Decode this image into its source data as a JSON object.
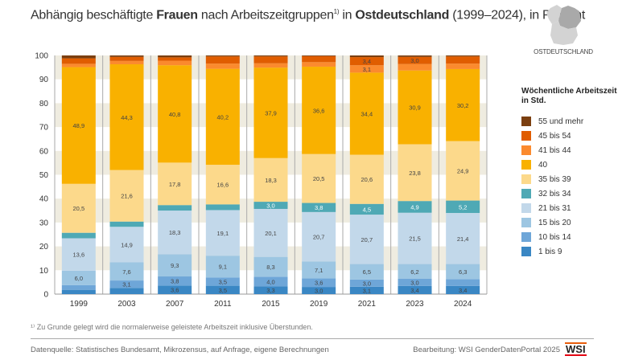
{
  "title": {
    "pre": "Abhängig beschäftigte ",
    "bold1": "Frauen",
    "mid": " nach Arbeitszeitgruppen",
    "sup": "1)",
    "mid2": " in ",
    "bold2": "Ostdeutschland",
    "post": " (1999–2024), in Prozent"
  },
  "map": {
    "label": "OSTDEUTSCHLAND",
    "icon": "germany-map-icon"
  },
  "footnote": "¹⁾ Zu Grunde gelegt wird die normalerweise geleistete Arbeitszeit inklusive Überstunden.",
  "source": "Datenquelle: Statistisches Bundesamt, Mikrozensus, auf Anfrage, eigene Berechnungen",
  "credit": "Bearbeitung: WSI GenderDatenPortal 2025",
  "logo": "WSI",
  "chart_data": {
    "type": "bar",
    "stacked": true,
    "categories": [
      "1999",
      "2003",
      "2007",
      "2011",
      "2015",
      "2019",
      "2021",
      "2023",
      "2024"
    ],
    "ylim": [
      0,
      100
    ],
    "yticks": [
      "0",
      "10",
      "20",
      "30",
      "40",
      "50",
      "60",
      "70",
      "80",
      "90",
      "100"
    ],
    "legend_title": "Wöchentliche Arbeitszeit in Std.",
    "legend_placement": "right",
    "series": [
      {
        "name": "1 bis 9",
        "color": "#3a87c4",
        "values": [
          1.8,
          2.6,
          3.6,
          3.5,
          3.3,
          3.0,
          3.1,
          3.4,
          3.4
        ],
        "labels": [
          null,
          null,
          "3,6",
          "3,5",
          "3,3",
          "3,0",
          "3,1",
          "3,4",
          "3,4"
        ]
      },
      {
        "name": "10 bis 14",
        "color": "#6ea6d8",
        "values": [
          2.0,
          3.1,
          3.8,
          3.5,
          4.0,
          3.6,
          3.0,
          3.0,
          2.9
        ],
        "labels": [
          null,
          "3,1",
          "3,8",
          "3,5",
          "4,0",
          "3,6",
          "3,0",
          "3,0",
          null
        ]
      },
      {
        "name": "15 bis 20",
        "color": "#9dc6e2",
        "values": [
          6.0,
          7.6,
          9.3,
          9.1,
          8.3,
          7.1,
          6.5,
          6.2,
          6.3
        ],
        "labels": [
          "6,0",
          "7,6",
          "9,3",
          "9,1",
          "8,3",
          "7,1",
          "6,5",
          "6,2",
          "6,3"
        ]
      },
      {
        "name": "21 bis 31",
        "color": "#c2d8ea",
        "values": [
          13.6,
          14.9,
          18.3,
          19.1,
          20.1,
          20.7,
          20.7,
          21.5,
          21.4
        ],
        "labels": [
          "13,6",
          "14,9",
          "18,3",
          "19,1",
          "20,1",
          "20,7",
          "20,7",
          "21,5",
          "21,4"
        ]
      },
      {
        "name": "32 bis 34",
        "color": "#4fa9b5",
        "values": [
          2.3,
          2.2,
          2.3,
          2.4,
          3.0,
          3.8,
          4.5,
          4.9,
          5.2
        ],
        "labels": [
          null,
          null,
          null,
          null,
          "3,0",
          "3,8",
          "4,5",
          "4,9",
          "5,2"
        ]
      },
      {
        "name": "35 bis 39",
        "color": "#fcd98b",
        "values": [
          20.5,
          21.6,
          17.8,
          16.6,
          18.3,
          20.5,
          20.6,
          23.8,
          24.9
        ],
        "labels": [
          "20,5",
          "21,6",
          "17,8",
          "16,6",
          "18,3",
          "20,5",
          "20,6",
          "23,8",
          "24,9"
        ]
      },
      {
        "name": "40",
        "color": "#f9b100",
        "values": [
          48.9,
          44.3,
          40.8,
          40.2,
          37.9,
          36.6,
          34.4,
          30.9,
          30.2
        ],
        "labels": [
          "48,9",
          "44,3",
          "40,8",
          "40,2",
          "37,9",
          "36,6",
          "34,4",
          "30,9",
          "30,2"
        ]
      },
      {
        "name": "41 bis 44",
        "color": "#fb8a2e",
        "values": [
          1.4,
          1.4,
          1.9,
          2.2,
          1.8,
          1.9,
          3.1,
          2.7,
          2.3
        ],
        "labels": [
          null,
          null,
          null,
          null,
          null,
          null,
          "3,1",
          null,
          null
        ]
      },
      {
        "name": "45 bis 54",
        "color": "#e05d00",
        "values": [
          2.3,
          1.7,
          1.4,
          3.0,
          2.9,
          2.5,
          3.4,
          3.0,
          3.0
        ],
        "labels": [
          null,
          null,
          null,
          null,
          null,
          null,
          "3,4",
          "3,0",
          null
        ]
      },
      {
        "name": "55 und mehr",
        "color": "#7b3f10",
        "values": [
          1.2,
          0.6,
          0.8,
          0.4,
          0.4,
          0.3,
          0.7,
          0.6,
          0.4
        ],
        "labels": [
          null,
          null,
          null,
          null,
          null,
          null,
          null,
          null,
          null
        ]
      }
    ]
  }
}
